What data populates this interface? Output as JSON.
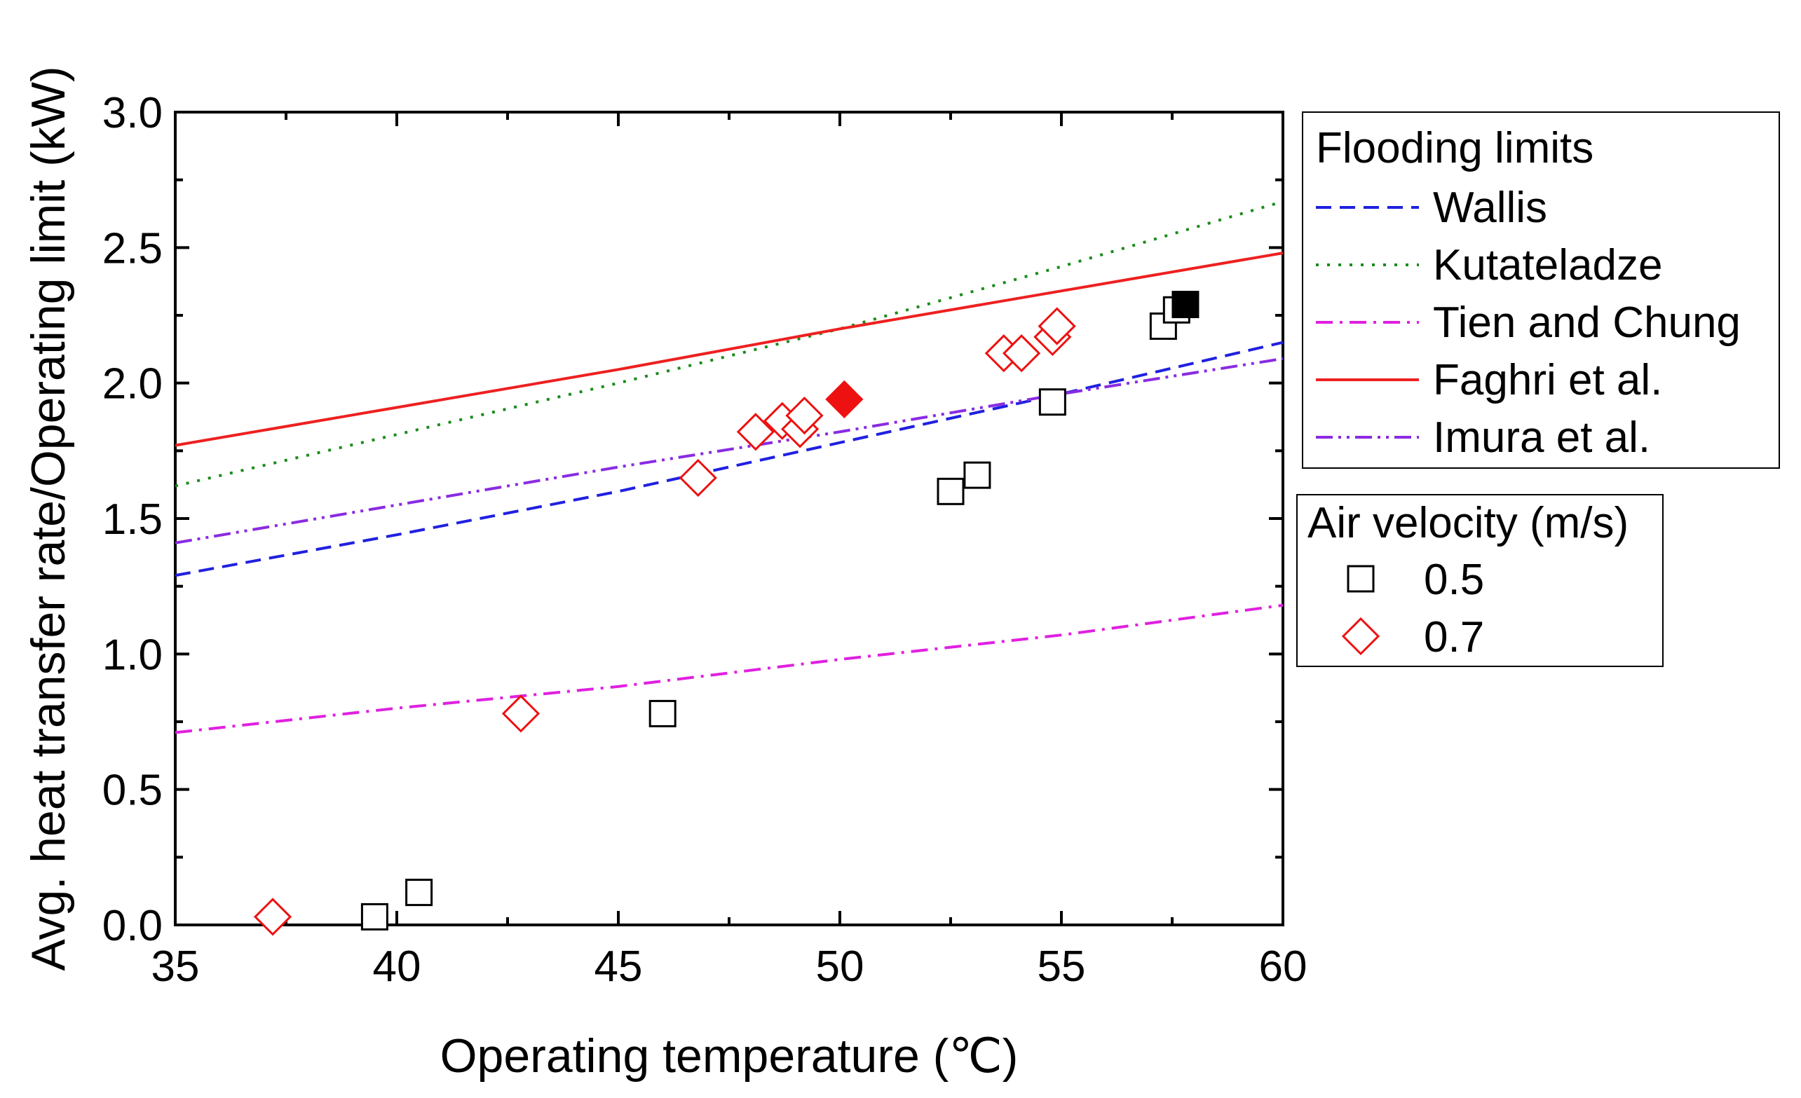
{
  "chart_data": {
    "type": "scatter",
    "title": "",
    "xlabel": "Operating temperature (℃)",
    "ylabel": "Avg. heat transfer rate/Operating limit (kW)",
    "xlim": [
      35,
      60
    ],
    "ylim": [
      0.0,
      3.0
    ],
    "x_ticks": [
      "35",
      "40",
      "45",
      "50",
      "55",
      "60"
    ],
    "y_ticks": [
      "0.0",
      "0.5",
      "1.0",
      "1.5",
      "2.0",
      "2.5",
      "3.0"
    ],
    "grid": false,
    "legend_flooding_title": "Flooding limits",
    "legend_air_title": "Air velocity (m/s)",
    "lines": [
      {
        "name": "Wallis",
        "color": "#2020e0",
        "dash": "dash",
        "x": [
          35,
          40,
          45,
          50,
          55,
          60
        ],
        "y": [
          1.29,
          1.44,
          1.6,
          1.78,
          1.96,
          2.15
        ]
      },
      {
        "name": "Kutateladze",
        "color": "#1a8c1a",
        "dash": "dot",
        "x": [
          35,
          40,
          45,
          50,
          55,
          60
        ],
        "y": [
          1.62,
          1.81,
          2.0,
          2.2,
          2.43,
          2.67
        ]
      },
      {
        "name": "Tien and Chung",
        "color": "#e020e0",
        "dash": "dashdot",
        "x": [
          35,
          40,
          45,
          50,
          55,
          60
        ],
        "y": [
          0.71,
          0.8,
          0.88,
          0.98,
          1.07,
          1.18
        ]
      },
      {
        "name": "Faghri et al.",
        "color": "#ee2020",
        "dash": "solid",
        "x": [
          35,
          40,
          45,
          50,
          55,
          60
        ],
        "y": [
          1.77,
          1.91,
          2.05,
          2.2,
          2.34,
          2.48
        ]
      },
      {
        "name": "Imura et al.",
        "color": "#8a2be2",
        "dash": "dashdotdot",
        "x": [
          35,
          40,
          45,
          50,
          55,
          60
        ],
        "y": [
          1.41,
          1.55,
          1.69,
          1.82,
          1.96,
          2.09
        ]
      }
    ],
    "series": [
      {
        "name": "0.5",
        "marker": "square",
        "color": "#000000",
        "points": [
          {
            "x": 39.5,
            "y": 0.03,
            "filled": false
          },
          {
            "x": 40.5,
            "y": 0.12,
            "filled": false
          },
          {
            "x": 46.0,
            "y": 0.78,
            "filled": false
          },
          {
            "x": 52.5,
            "y": 1.6,
            "filled": false
          },
          {
            "x": 53.1,
            "y": 1.66,
            "filled": false
          },
          {
            "x": 54.8,
            "y": 1.93,
            "filled": false
          },
          {
            "x": 57.3,
            "y": 2.21,
            "filled": false
          },
          {
            "x": 57.6,
            "y": 2.27,
            "filled": false
          },
          {
            "x": 57.8,
            "y": 2.29,
            "filled": true
          }
        ]
      },
      {
        "name": "0.7",
        "marker": "diamond",
        "color": "#ee1111",
        "points": [
          {
            "x": 37.2,
            "y": 0.03,
            "filled": false
          },
          {
            "x": 42.8,
            "y": 0.78,
            "filled": false
          },
          {
            "x": 46.8,
            "y": 1.65,
            "filled": false
          },
          {
            "x": 48.1,
            "y": 1.82,
            "filled": false
          },
          {
            "x": 48.7,
            "y": 1.86,
            "filled": false
          },
          {
            "x": 49.1,
            "y": 1.83,
            "filled": false
          },
          {
            "x": 49.2,
            "y": 1.88,
            "filled": false
          },
          {
            "x": 50.1,
            "y": 1.94,
            "filled": true
          },
          {
            "x": 53.7,
            "y": 2.11,
            "filled": false
          },
          {
            "x": 54.1,
            "y": 2.11,
            "filled": false
          },
          {
            "x": 54.8,
            "y": 2.17,
            "filled": false
          },
          {
            "x": 54.9,
            "y": 2.21,
            "filled": false
          }
        ]
      }
    ]
  }
}
